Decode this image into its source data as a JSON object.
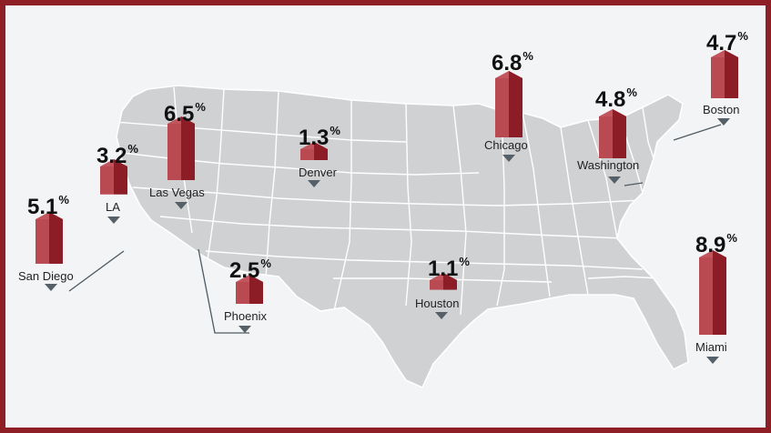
{
  "colors": {
    "frame": "#8f1f27",
    "background": "#f2f4f5",
    "land": "#cfd1d3",
    "state_border": "#ffffff",
    "bar_front": "#8c1c26",
    "bar_side": "#b94a52",
    "bar_top": "#c2555d",
    "pointer": "#556068",
    "leader_line": "#4e5a62"
  },
  "cities": [
    {
      "id": "san-diego",
      "name": "San Diego",
      "value": "5.1",
      "unit": "%",
      "share": 5.1
    },
    {
      "id": "la",
      "name": "LA",
      "value": "3.2",
      "unit": "%",
      "share": 3.2
    },
    {
      "id": "las-vegas",
      "name": "Las Vegas",
      "value": "6.5",
      "unit": "%",
      "share": 6.5
    },
    {
      "id": "denver",
      "name": "Denver",
      "value": "1.3",
      "unit": "%",
      "share": 1.3
    },
    {
      "id": "phoenix",
      "name": "Phoenix",
      "value": "2.5",
      "unit": "%",
      "share": 2.5
    },
    {
      "id": "houston",
      "name": "Houston",
      "value": "1.1",
      "unit": "%",
      "share": 1.1
    },
    {
      "id": "chicago",
      "name": "Chicago",
      "value": "6.8",
      "unit": "%",
      "share": 6.8
    },
    {
      "id": "washington",
      "name": "Washington",
      "value": "4.8",
      "unit": "%",
      "share": 4.8
    },
    {
      "id": "boston",
      "name": "Boston",
      "value": "4.7",
      "unit": "%",
      "share": 4.7
    },
    {
      "id": "miami",
      "name": "Miami",
      "value": "8.9",
      "unit": "%",
      "share": 8.9
    }
  ]
}
